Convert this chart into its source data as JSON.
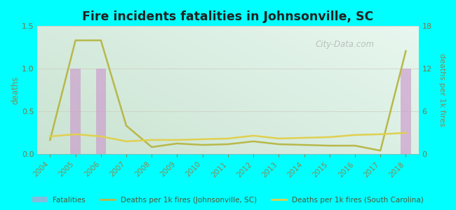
{
  "title": "Fire incidents fatalities in Johnsonville, SC",
  "background_color": "#00FFFF",
  "plot_bg_top_right": "#d4ecc8",
  "plot_bg_bottom_left": "#e8f8f0",
  "years": [
    2004,
    2005,
    2006,
    2007,
    2008,
    2009,
    2010,
    2011,
    2012,
    2013,
    2014,
    2015,
    2016,
    2017,
    2018
  ],
  "fatalities": [
    0,
    1,
    1,
    0,
    0,
    0,
    0,
    0,
    0,
    0,
    0,
    0,
    0,
    0,
    1
  ],
  "johnsonville_per1k": [
    2.0,
    16.0,
    16.0,
    4.0,
    1.0,
    1.5,
    1.3,
    1.4,
    1.8,
    1.4,
    1.3,
    1.2,
    1.2,
    0.5,
    14.5
  ],
  "sc_per1k": [
    2.5,
    2.8,
    2.5,
    1.8,
    2.0,
    2.0,
    2.1,
    2.2,
    2.6,
    2.2,
    2.3,
    2.4,
    2.7,
    2.8,
    3.0
  ],
  "bar_color": "#cc99cc",
  "bar_alpha": 0.65,
  "johnsonville_line_color": "#b8b84a",
  "sc_line_color": "#e0d050",
  "left_ylim": [
    0,
    1.5
  ],
  "right_ylim": [
    0,
    18
  ],
  "left_yticks": [
    0,
    0.5,
    1.0,
    1.5
  ],
  "right_yticks": [
    0,
    6,
    12,
    18
  ],
  "ylabel_left": "deaths",
  "ylabel_right": "deaths per 1k fires",
  "watermark": "City-Data.com",
  "legend_items": [
    "Fatalities",
    "Deaths per 1k fires (Johnsonville, SC)",
    "Deaths per 1k fires (South Carolina)"
  ]
}
